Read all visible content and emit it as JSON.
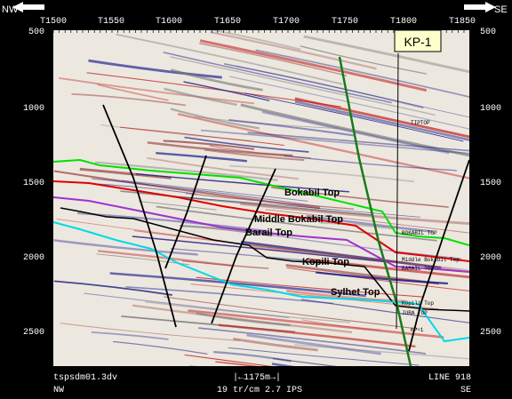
{
  "direction": {
    "left": "NW",
    "right": "SE"
  },
  "top_ticks": [
    "T1500",
    "T1550",
    "T1600",
    "T1650",
    "T1700",
    "T1750",
    "T1800",
    "T1850"
  ],
  "depth_ticks": [
    "500",
    "1000",
    "1500",
    "2000",
    "2500"
  ],
  "well": {
    "label": "KP-1",
    "marker_labels": [
      "BOKABIL TOP",
      "Middle Bokabil Top",
      "BARAIL TOP",
      "Kopili Top",
      "JURA TOP",
      "KP-1",
      "TIPTOP"
    ]
  },
  "horizons": [
    {
      "name": "Bokabil Top",
      "color": "#00e000"
    },
    {
      "name": "Middle Bokabil Top",
      "color": "#e00000"
    },
    {
      "name": "Barail Top",
      "color": "#a030d0"
    },
    {
      "name": "Kopili Top",
      "color": "#000000"
    },
    {
      "name": "Sylhet Top",
      "color": "#00d8e8"
    }
  ],
  "footer": {
    "file": "tspsdm01.3dv",
    "scale": "|←1175m→|",
    "line": "LINE 918",
    "nw": "NW",
    "params": "19 tr/cm 2.7 IPS",
    "se": "SE"
  },
  "colors": {
    "frame": "#000000",
    "fault": "#000000",
    "well_trace": "#1a7a1a",
    "callout_bg": "#ffffcc"
  }
}
